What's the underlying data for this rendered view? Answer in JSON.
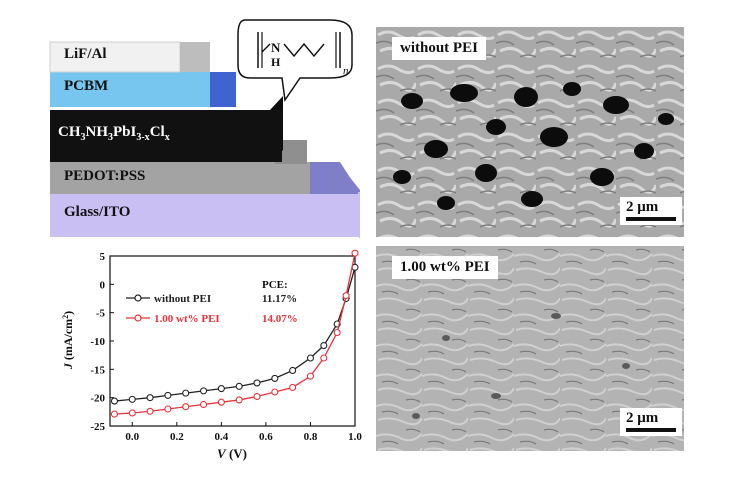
{
  "device_stack": {
    "layers": [
      {
        "label": "LiF/Al"
      },
      {
        "label": "PCBM"
      },
      {
        "label": "CH3NH3PbI3-xClx",
        "main": "CH",
        "sub1": "3",
        "mid1": "NH",
        "sub2": "3",
        "mid2": "PbI",
        "sub3": "3-x",
        "mid3": "Cl",
        "sub4": "x"
      },
      {
        "label": "PEDOT:PSS"
      },
      {
        "label": "Glass/ITO"
      }
    ],
    "pei_structure": {
      "atom": "N",
      "atom_h": "H",
      "repeat": "n"
    }
  },
  "sem_panels": [
    {
      "label": "without PEI",
      "scale_bar": "2 μm"
    },
    {
      "label": "1.00 wt% PEI",
      "scale_bar": "2 μm"
    }
  ],
  "chart_data": {
    "type": "line",
    "xlabel": "V (V)",
    "xlabel_var": "V",
    "xlabel_unit": "(V)",
    "ylabel": "J (mA/cm²)",
    "ylabel_var": "J",
    "ylabel_unit": "(mA/cm",
    "ylabel_sup": "2",
    "xlim": [
      -0.1,
      1.0
    ],
    "ylim": [
      -25,
      5
    ],
    "xticks": [
      "0.0",
      "0.2",
      "0.4",
      "0.6",
      "0.8",
      "1.0"
    ],
    "xtick_values": [
      0.0,
      0.2,
      0.4,
      0.6,
      0.8,
      1.0
    ],
    "yticks": [
      "5",
      "0",
      "-5",
      "-10",
      "-15",
      "-20",
      "-25"
    ],
    "ytick_values": [
      5,
      0,
      -5,
      -10,
      -15,
      -20,
      -25
    ],
    "pce_header": "PCE:",
    "series": [
      {
        "name": "without PEI",
        "pce": "11.17%",
        "color": "#222222",
        "x": [
          -0.08,
          0.0,
          0.08,
          0.16,
          0.24,
          0.32,
          0.4,
          0.48,
          0.56,
          0.64,
          0.72,
          0.8,
          0.86,
          0.92,
          0.96,
          1.0
        ],
        "y": [
          -20.6,
          -20.3,
          -20.0,
          -19.6,
          -19.2,
          -18.8,
          -18.4,
          -18.0,
          -17.4,
          -16.6,
          -15.2,
          -13.0,
          -10.8,
          -7.0,
          -2.5,
          3.0
        ]
      },
      {
        "name": "1.00 wt% PEI",
        "pce": "14.07%",
        "color": "#e8333a",
        "x": [
          -0.08,
          0.0,
          0.08,
          0.16,
          0.24,
          0.32,
          0.4,
          0.48,
          0.56,
          0.64,
          0.72,
          0.8,
          0.86,
          0.92,
          0.96,
          1.0
        ],
        "y": [
          -22.9,
          -22.7,
          -22.4,
          -22.0,
          -21.6,
          -21.2,
          -20.8,
          -20.4,
          -19.8,
          -19.0,
          -18.2,
          -16.2,
          -13.0,
          -8.5,
          -2.0,
          5.5
        ]
      }
    ]
  }
}
